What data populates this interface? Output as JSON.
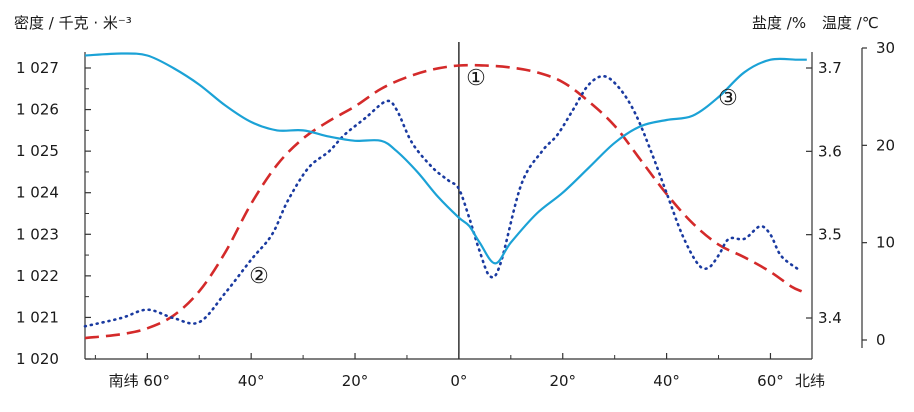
{
  "chart_data": {
    "type": "line",
    "title": "",
    "xlabel": "",
    "x_unit": "degrees latitude (negative = south)",
    "xlim": [
      -72,
      68
    ],
    "x_ticks": [
      {
        "value": -60,
        "label": "南纬 60°"
      },
      {
        "value": -40,
        "label": "40°"
      },
      {
        "value": -20,
        "label": "20°"
      },
      {
        "value": 0,
        "label": "0°"
      },
      {
        "value": 20,
        "label": "20°"
      },
      {
        "value": 40,
        "label": "40°"
      },
      {
        "value": 60,
        "label": "60°"
      },
      {
        "value": 68,
        "label": "北纬"
      }
    ],
    "left_axis": {
      "label": "密度 / 千克 · 米⁻³",
      "ylim": [
        1020,
        1027.3
      ],
      "ticks": [
        {
          "value": 1020,
          "label": "1 020"
        },
        {
          "value": 1021,
          "label": "1 021"
        },
        {
          "value": 1022,
          "label": "1 022"
        },
        {
          "value": 1023,
          "label": "1 023"
        },
        {
          "value": 1024,
          "label": "1 024"
        },
        {
          "value": 1025,
          "label": "1 025"
        },
        {
          "value": 1026,
          "label": "1 026"
        },
        {
          "value": 1027,
          "label": "1 027"
        }
      ]
    },
    "salinity_axis": {
      "label": "盐度 /%",
      "ylim": [
        3.35,
        3.72
      ],
      "ticks": [
        {
          "value": 3.4,
          "label": "3.4"
        },
        {
          "value": 3.5,
          "label": "3.5"
        },
        {
          "value": 3.6,
          "label": "3.6"
        },
        {
          "value": 3.7,
          "label": "3.7"
        }
      ]
    },
    "temperature_axis": {
      "label": "温度 /℃",
      "ylim": [
        -2,
        30
      ],
      "ticks": [
        {
          "value": 0,
          "label": "0"
        },
        {
          "value": 10,
          "label": "10"
        },
        {
          "value": 20,
          "label": "20"
        },
        {
          "value": 30,
          "label": "30"
        }
      ]
    },
    "series": [
      {
        "name": "①",
        "style": "dashed",
        "color": "#d42a2a",
        "axis": "temperature",
        "label": "①",
        "points": [
          [
            -72,
            0.2
          ],
          [
            -65,
            0.6
          ],
          [
            -60,
            1.2
          ],
          [
            -55,
            2.5
          ],
          [
            -50,
            5.0
          ],
          [
            -45,
            9.0
          ],
          [
            -40,
            14.0
          ],
          [
            -35,
            18.0
          ],
          [
            -30,
            20.7
          ],
          [
            -25,
            22.5
          ],
          [
            -20,
            24.0
          ],
          [
            -15,
            25.8
          ],
          [
            -10,
            27.0
          ],
          [
            -5,
            27.8
          ],
          [
            0,
            28.2
          ],
          [
            5,
            28.2
          ],
          [
            10,
            28.0
          ],
          [
            15,
            27.5
          ],
          [
            20,
            26.5
          ],
          [
            25,
            24.5
          ],
          [
            30,
            22.0
          ],
          [
            35,
            18.5
          ],
          [
            40,
            15.0
          ],
          [
            45,
            12.0
          ],
          [
            50,
            9.8
          ],
          [
            55,
            8.5
          ],
          [
            60,
            7.0
          ],
          [
            64,
            5.5
          ],
          [
            66,
            5.0
          ]
        ]
      },
      {
        "name": "②",
        "style": "dotted",
        "color": "#1a3aa0",
        "axis": "salinity",
        "label": "②",
        "points": [
          [
            -72,
            3.39
          ],
          [
            -65,
            3.4
          ],
          [
            -60,
            3.41
          ],
          [
            -55,
            3.4
          ],
          [
            -50,
            3.395
          ],
          [
            -45,
            3.43
          ],
          [
            -40,
            3.47
          ],
          [
            -36,
            3.5
          ],
          [
            -33,
            3.54
          ],
          [
            -29,
            3.58
          ],
          [
            -25,
            3.6
          ],
          [
            -22,
            3.62
          ],
          [
            -18,
            3.64
          ],
          [
            -14,
            3.66
          ],
          [
            -12,
            3.65
          ],
          [
            -9,
            3.61
          ],
          [
            -5,
            3.58
          ],
          [
            -2,
            3.565
          ],
          [
            0,
            3.555
          ],
          [
            2,
            3.52
          ],
          [
            4,
            3.48
          ],
          [
            6,
            3.45
          ],
          [
            8,
            3.465
          ],
          [
            12,
            3.56
          ],
          [
            16,
            3.6
          ],
          [
            19,
            3.62
          ],
          [
            22,
            3.65
          ],
          [
            25,
            3.68
          ],
          [
            28,
            3.69
          ],
          [
            31,
            3.675
          ],
          [
            34,
            3.645
          ],
          [
            37,
            3.6
          ],
          [
            40,
            3.55
          ],
          [
            43,
            3.5
          ],
          [
            46,
            3.465
          ],
          [
            48,
            3.46
          ],
          [
            50,
            3.475
          ],
          [
            52,
            3.495
          ],
          [
            55,
            3.495
          ],
          [
            58,
            3.51
          ],
          [
            60,
            3.5
          ],
          [
            62,
            3.475
          ],
          [
            65,
            3.46
          ],
          [
            66,
            3.458
          ]
        ]
      },
      {
        "name": "③",
        "style": "solid",
        "color": "#1ba2d6",
        "axis": "left",
        "label": "③",
        "points": [
          [
            -72,
            1027.3
          ],
          [
            -65,
            1027.35
          ],
          [
            -60,
            1027.3
          ],
          [
            -55,
            1027.0
          ],
          [
            -50,
            1026.6
          ],
          [
            -45,
            1026.1
          ],
          [
            -40,
            1025.7
          ],
          [
            -35,
            1025.5
          ],
          [
            -30,
            1025.5
          ],
          [
            -25,
            1025.35
          ],
          [
            -20,
            1025.25
          ],
          [
            -15,
            1025.25
          ],
          [
            -12,
            1025.0
          ],
          [
            -8,
            1024.5
          ],
          [
            -4,
            1023.9
          ],
          [
            0,
            1023.4
          ],
          [
            2,
            1023.2
          ],
          [
            4,
            1022.8
          ],
          [
            7,
            1022.3
          ],
          [
            10,
            1022.8
          ],
          [
            15,
            1023.5
          ],
          [
            20,
            1024.0
          ],
          [
            25,
            1024.6
          ],
          [
            30,
            1025.2
          ],
          [
            35,
            1025.6
          ],
          [
            40,
            1025.75
          ],
          [
            45,
            1025.85
          ],
          [
            50,
            1026.3
          ],
          [
            55,
            1026.9
          ],
          [
            60,
            1027.2
          ],
          [
            65,
            1027.2
          ],
          [
            67,
            1027.2
          ]
        ]
      }
    ]
  }
}
